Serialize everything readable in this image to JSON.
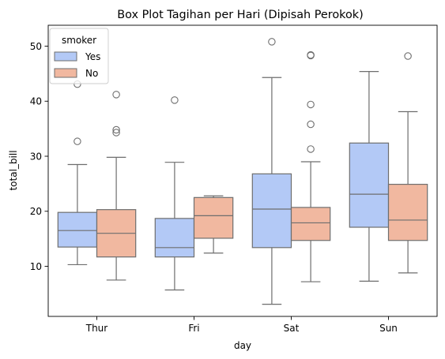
{
  "chart_data": {
    "type": "box",
    "title": "Box Plot Tagihan per Hari (Dipisah Perokok)",
    "xlabel": "day",
    "ylabel": "total_bill",
    "categories": [
      "Thur",
      "Fri",
      "Sat",
      "Sun"
    ],
    "ylim": [
      0.9,
      53.8
    ],
    "yticks": [
      10,
      20,
      30,
      40,
      50
    ],
    "grid": false,
    "legend": {
      "title": "smoker",
      "position": "top-left"
    },
    "series": [
      {
        "name": "Yes",
        "color": "#b3c9f6",
        "boxes": [
          {
            "whislo": 10.3,
            "q1": 13.5,
            "med": 16.5,
            "q3": 19.8,
            "whishi": 28.5,
            "fliers": [
              32.7,
              43.1
            ]
          },
          {
            "whislo": 5.7,
            "q1": 11.7,
            "med": 13.4,
            "q3": 18.7,
            "whishi": 28.9,
            "fliers": [
              40.2
            ]
          },
          {
            "whislo": 3.1,
            "q1": 13.4,
            "med": 20.4,
            "q3": 26.8,
            "whishi": 44.3,
            "fliers": [
              50.8
            ]
          },
          {
            "whislo": 7.3,
            "q1": 17.1,
            "med": 23.1,
            "q3": 32.4,
            "whishi": 45.4,
            "fliers": []
          }
        ]
      },
      {
        "name": "No",
        "color": "#f1b8a0",
        "boxes": [
          {
            "whislo": 7.5,
            "q1": 11.7,
            "med": 16.0,
            "q3": 20.3,
            "whishi": 29.8,
            "fliers": [
              34.3,
              34.8,
              41.2
            ]
          },
          {
            "whislo": 12.4,
            "q1": 15.1,
            "med": 19.2,
            "q3": 22.5,
            "whishi": 22.8,
            "fliers": []
          },
          {
            "whislo": 7.2,
            "q1": 14.7,
            "med": 17.9,
            "q3": 20.7,
            "whishi": 29.0,
            "fliers": [
              31.3,
              35.8,
              39.4,
              48.3,
              48.4
            ]
          },
          {
            "whislo": 8.8,
            "q1": 14.7,
            "med": 18.4,
            "q3": 24.9,
            "whishi": 38.1,
            "fliers": [
              48.2
            ]
          }
        ]
      }
    ]
  }
}
